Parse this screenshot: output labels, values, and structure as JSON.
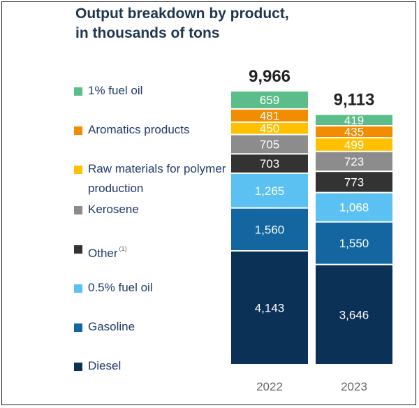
{
  "chart_data": {
    "type": "stacked-bar",
    "title_lines": [
      "Output breakdown by product,",
      "in thousands of tons"
    ],
    "categories": [
      "2022",
      "2023"
    ],
    "totals": [
      9966,
      9113
    ],
    "total_labels": [
      "9,966",
      "9,113"
    ],
    "series": [
      {
        "name": "Diesel",
        "color": "#0c3157",
        "text_color": "#ffffff",
        "values": [
          4143,
          3646
        ],
        "value_labels": [
          "4,143",
          "3,646"
        ]
      },
      {
        "name": "Gasoline",
        "color": "#1366a0",
        "text_color": "#ffffff",
        "values": [
          1560,
          1550
        ],
        "value_labels": [
          "1,560",
          "1,550"
        ]
      },
      {
        "name": "0.5% fuel oil",
        "color": "#5bc0f2",
        "text_color": "#ffffff",
        "values": [
          1265,
          1068
        ],
        "value_labels": [
          "1,265",
          "1,068"
        ]
      },
      {
        "name": "Other",
        "note": "(1)",
        "color": "#333333",
        "text_color": "#ffffff",
        "values": [
          703,
          773
        ],
        "value_labels": [
          "703",
          "773"
        ]
      },
      {
        "name": "Kerosene",
        "color": "#8c8c8c",
        "text_color": "#ffffff",
        "values": [
          705,
          723
        ],
        "value_labels": [
          "705",
          "723"
        ]
      },
      {
        "name": "Raw materials for polymer production",
        "color": "#ffc000",
        "text_color": "#ffffff",
        "values": [
          450,
          499
        ],
        "value_labels": [
          "450",
          "499"
        ]
      },
      {
        "name": "Aromatics products",
        "color": "#f28c00",
        "text_color": "#ffffff",
        "values": [
          481,
          435
        ],
        "value_labels": [
          "481",
          "435"
        ]
      },
      {
        "name": "1% fuel oil",
        "color": "#5bbd8a",
        "text_color": "#ffffff",
        "values": [
          659,
          419
        ],
        "value_labels": [
          "659",
          "419"
        ]
      }
    ],
    "legend": [
      {
        "label": "1% fuel oil",
        "color": "#5bbd8a"
      },
      {
        "label": "Aromatics products",
        "color": "#f28c00"
      },
      {
        "label": "Raw materials for polymer production",
        "color": "#ffc000"
      },
      {
        "label": "Kerosene",
        "color": "#8c8c8c"
      },
      {
        "label": "Other",
        "note": "(1)",
        "color": "#333333"
      },
      {
        "label": "0.5% fuel oil",
        "color": "#5bc0f2"
      },
      {
        "label": "Gasoline",
        "color": "#1366a0"
      },
      {
        "label": "Diesel",
        "color": "#0c3157"
      }
    ],
    "xlabel": "",
    "ylabel": ""
  }
}
